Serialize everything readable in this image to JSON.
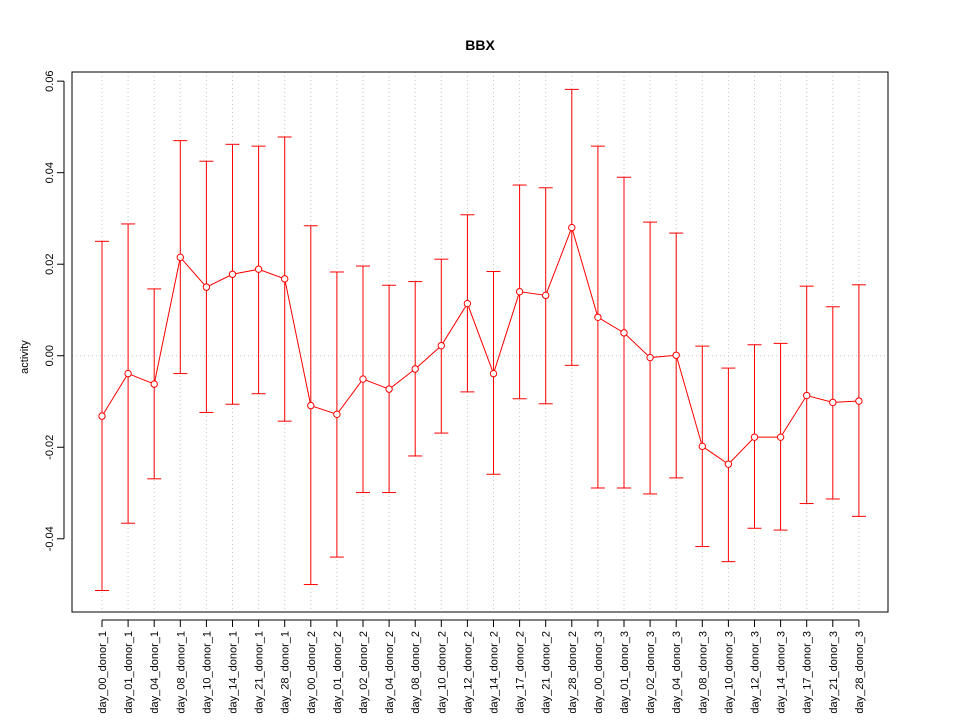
{
  "chart_data": {
    "type": "line",
    "title": "BBX",
    "xlabel": "",
    "ylabel": "activity",
    "ylim": [
      -0.056,
      0.062
    ],
    "yticks": [
      -0.04,
      -0.02,
      0.0,
      0.02,
      0.04,
      0.06
    ],
    "ytick_labels": [
      "-0.04",
      "-0.02",
      "0.00",
      "0.02",
      "0.04",
      "0.06"
    ],
    "grid": true,
    "series_color": "#ff0000",
    "grid_color": "#c8c8c8",
    "categories": [
      "day_00_donor_1",
      "day_01_donor_1",
      "day_04_donor_1",
      "day_08_donor_1",
      "day_10_donor_1",
      "day_14_donor_1",
      "day_21_donor_1",
      "day_28_donor_1",
      "day_00_donor_2",
      "day_01_donor_2",
      "day_02_donor_2",
      "day_04_donor_2",
      "day_08_donor_2",
      "day_10_donor_2",
      "day_12_donor_2",
      "day_14_donor_2",
      "day_17_donor_2",
      "day_21_donor_2",
      "day_28_donor_2",
      "day_00_donor_3",
      "day_01_donor_3",
      "day_02_donor_3",
      "day_04_donor_3",
      "day_08_donor_3",
      "day_10_donor_3",
      "day_12_donor_3",
      "day_14_donor_3",
      "day_17_donor_3",
      "day_21_donor_3",
      "day_28_donor_3"
    ],
    "values": [
      -0.0132,
      -0.0039,
      -0.0062,
      0.0215,
      0.015,
      0.0178,
      0.0189,
      0.0168,
      -0.0109,
      -0.0128,
      -0.0051,
      -0.0073,
      -0.0029,
      0.0022,
      0.0114,
      -0.0039,
      0.014,
      0.0132,
      0.028,
      0.0084,
      0.005,
      -0.0004,
      0.0001,
      -0.0198,
      -0.0237,
      -0.0178,
      -0.0178,
      -0.0087,
      -0.0102,
      -0.0099
    ],
    "err_upper": [
      0.025,
      0.0288,
      0.0146,
      0.047,
      0.0425,
      0.0462,
      0.0458,
      0.0478,
      0.0284,
      0.0183,
      0.0196,
      0.0154,
      0.0162,
      0.0211,
      0.0308,
      0.0184,
      0.0373,
      0.0367,
      0.0582,
      0.0458,
      0.039,
      0.0292,
      0.0268,
      0.0021,
      -0.0027,
      0.0024,
      0.0027,
      0.0152,
      0.0107,
      0.0155
    ],
    "err_lower": [
      -0.0513,
      -0.0366,
      -0.0269,
      -0.0039,
      -0.0124,
      -0.0106,
      -0.0083,
      -0.0143,
      -0.05,
      -0.044,
      -0.0299,
      -0.0299,
      -0.0219,
      -0.0169,
      -0.0079,
      -0.0259,
      -0.0094,
      -0.0105,
      -0.0021,
      -0.0289,
      -0.0289,
      -0.0302,
      -0.0267,
      -0.0417,
      -0.045,
      -0.0377,
      -0.0381,
      -0.0323,
      -0.0313,
      -0.0351
    ]
  }
}
